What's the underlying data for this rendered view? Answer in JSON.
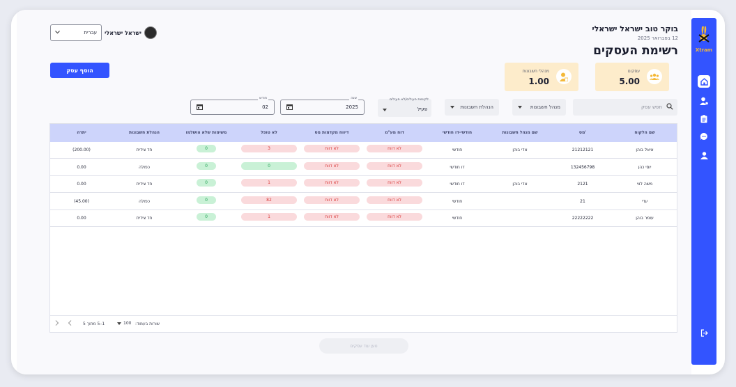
{
  "header": {
    "greeting": "בוקר טוב ישראל ישראלי",
    "date": "12 בפברואר 2025",
    "page_title": "רשימת העסקים",
    "user_name": "ישראל ישראלי",
    "language": "עברית"
  },
  "actions": {
    "add_business": "הוסף עסק",
    "load_more": "טען עוד עסקים"
  },
  "stats": [
    {
      "label": "עסקים",
      "value": "5.00"
    },
    {
      "label": "מנהלי חשבונות",
      "value": "1.00"
    }
  ],
  "filters": {
    "search_placeholder": "חפש עסק",
    "accountant": "מנהל חשבונות",
    "bookkeeping": "הנהלת חשבונות",
    "status_label": "לקוחות פעילים/לא פעילים",
    "status_value": "פעיל",
    "year_label": "שנה",
    "year_value": "2025",
    "month_label": "חודש",
    "month_value": "02"
  },
  "table": {
    "headers": [
      "שם הלקוח",
      "מס'",
      "שם מנהל חשבונות",
      "חודשי-דו חודשי",
      "דוח מע\"מ",
      "דיווח מקדמות מס",
      "לא טופל",
      "משימות שלא הושלמו",
      "הנהלת חשבונות",
      "יתרה"
    ],
    "rows": [
      {
        "name": "איאל בוהן",
        "number": "21212121",
        "accountant": "אדי בוהן",
        "frequency": "חודשי",
        "vat": "לא דווח",
        "advance": "לא דווח",
        "untreated": "3",
        "tasks": "0",
        "bookkeeping": "חד צידית",
        "balance": "(200.00)"
      },
      {
        "name": "יוסי כהן",
        "number": "132456798",
        "accountant": "",
        "frequency": "דו חודשי",
        "vat": "לא דווח",
        "advance": "לא דווח",
        "untreated": "0",
        "tasks": "0",
        "bookkeeping": "כפולה",
        "balance": "0.00"
      },
      {
        "name": "משה לווי",
        "number": "2121",
        "accountant": "אדי בוהן",
        "frequency": "דו חודשי",
        "vat": "לא דווח",
        "advance": "לא דווח",
        "untreated": "1",
        "tasks": "0",
        "bookkeeping": "חד צידית",
        "balance": "0.00"
      },
      {
        "name": "עדי",
        "number": "21",
        "accountant": "",
        "frequency": "חודשי",
        "vat": "לא דווח",
        "advance": "לא דווח",
        "untreated": "82",
        "tasks": "0",
        "bookkeeping": "כפולה",
        "balance": "(45.00)"
      },
      {
        "name": "עומר בוהן",
        "number": "22222222",
        "accountant": "",
        "frequency": "חודשי",
        "vat": "לא דווח",
        "advance": "לא דווח",
        "untreated": "1",
        "tasks": "0",
        "bookkeeping": "חד צידית",
        "balance": "0.00"
      }
    ],
    "untreated_colors": [
      "red",
      "green",
      "red",
      "red",
      "red"
    ]
  },
  "pagination": {
    "rows_per_page_label": "שורות בעמוד:",
    "rows_per_page": "100",
    "range": "1–5 מתוך 5"
  },
  "brand": {
    "name": "Xtram",
    "accent": "#3354ff"
  }
}
